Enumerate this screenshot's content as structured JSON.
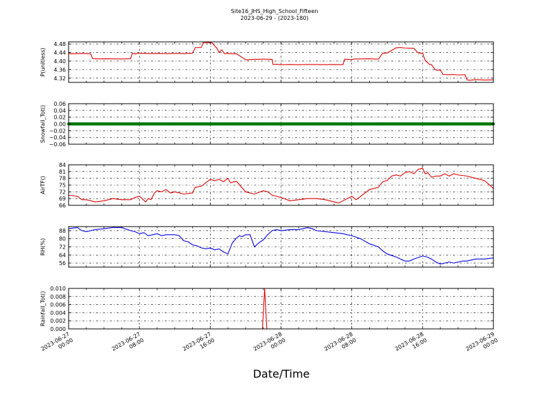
{
  "title_line1": "Site16_JHS_High_School_Fifteen",
  "title_line2": "2023-06-29 - (2023-180)",
  "xlabel": "Date/Time",
  "x_ticks": [
    {
      "t": 0,
      "line1": "2023-06-27",
      "line2": "00:00"
    },
    {
      "t": 8,
      "line1": "2023-06-27",
      "line2": "08:00"
    },
    {
      "t": 16,
      "line1": "2023-06-27",
      "line2": "16:00"
    },
    {
      "t": 24,
      "line1": "2023-06-28",
      "line2": "00:00"
    },
    {
      "t": 32,
      "line1": "2023-06-28",
      "line2": "08:00"
    },
    {
      "t": 40,
      "line1": "2023-06-28",
      "line2": "16:00"
    },
    {
      "t": 48,
      "line1": "2023-06-29",
      "line2": "00:00"
    }
  ],
  "chart_data": [
    {
      "type": "line",
      "ylabel": "P(unitless)",
      "ylim": [
        4.3,
        4.49
      ],
      "yticks": [
        4.32,
        4.36,
        4.4,
        4.44,
        4.48
      ],
      "ytick_labels": [
        "4.32",
        "4.36",
        "4.40",
        "4.44",
        "4.48"
      ],
      "color": "#dd0000",
      "x_hours": [
        0,
        0.3,
        1.5,
        2.5,
        2.7,
        3.3,
        4,
        6,
        7,
        7.2,
        7.5,
        8,
        9,
        10,
        11,
        12,
        13,
        14,
        14.3,
        15,
        15.2,
        16,
        16.2,
        16.8,
        17,
        17.3,
        17.6,
        18,
        19,
        20,
        21,
        22,
        23,
        23.1,
        23.6,
        24,
        25,
        26,
        27,
        28,
        29,
        30,
        31,
        31.2,
        32,
        32.3,
        33,
        34,
        35,
        35.5,
        36,
        37,
        37.5,
        38,
        39,
        39.5,
        40,
        40.3,
        40.8,
        41,
        41.4,
        41.7,
        42,
        42.3,
        43,
        43.5,
        44,
        44.8,
        45,
        45.3,
        46,
        47,
        48
      ],
      "values": [
        4.437,
        4.434,
        4.436,
        4.434,
        4.412,
        4.41,
        4.411,
        4.41,
        4.411,
        4.437,
        4.434,
        4.437,
        4.435,
        4.436,
        4.435,
        4.436,
        4.435,
        4.437,
        4.463,
        4.464,
        4.486,
        4.487,
        4.485,
        4.458,
        4.44,
        4.453,
        4.435,
        4.436,
        4.434,
        4.406,
        4.408,
        4.409,
        4.408,
        4.384,
        4.385,
        4.383,
        4.384,
        4.383,
        4.384,
        4.384,
        4.383,
        4.384,
        4.383,
        4.409,
        4.407,
        4.41,
        4.41,
        4.411,
        4.409,
        4.437,
        4.438,
        4.462,
        4.463,
        4.461,
        4.46,
        4.438,
        4.437,
        4.402,
        4.384,
        4.384,
        4.36,
        4.357,
        4.358,
        4.337,
        4.336,
        4.337,
        4.335,
        4.336,
        4.312,
        4.31,
        4.313,
        4.311,
        4.312
      ]
    },
    {
      "type": "scatter",
      "ylabel": "Snowfall_Tot()",
      "ylim": [
        -0.06,
        0.06
      ],
      "yticks": [
        -0.06,
        -0.04,
        -0.02,
        0.0,
        0.02,
        0.04,
        0.06
      ],
      "ytick_labels": [
        "−0.06",
        "−0.04",
        "−0.02",
        "0.00",
        "0.02",
        "0.04",
        "0.06"
      ],
      "color": "#007700",
      "x_range_hours": [
        0,
        48
      ],
      "value": 0.0,
      "interval_minutes": 5
    },
    {
      "type": "line",
      "ylabel": "AirTF()",
      "ylim": [
        66,
        84
      ],
      "yticks": [
        66,
        69,
        72,
        75,
        78,
        81,
        84
      ],
      "ytick_labels": [
        "66",
        "69",
        "72",
        "75",
        "78",
        "81",
        "84"
      ],
      "color": "#dd0000",
      "x_hours": [
        0,
        1,
        1.5,
        2,
        3,
        4,
        5,
        6,
        7,
        7.5,
        8,
        8.3,
        8.7,
        9,
        9.3,
        9.7,
        10,
        10.5,
        11,
        11.5,
        12,
        12.5,
        13,
        14,
        14.3,
        15,
        15.5,
        16,
        16.5,
        17,
        17.5,
        18,
        18.3,
        18.7,
        19,
        20,
        21,
        22,
        22.5,
        23,
        23.5,
        24,
        25,
        26,
        27,
        28,
        29,
        30,
        30.5,
        31,
        31.5,
        32,
        32.5,
        33,
        34,
        35,
        35.5,
        36,
        36.5,
        37,
        37.5,
        38,
        38.5,
        39,
        39.5,
        40,
        40.3,
        40.6,
        41,
        41.5,
        42,
        42.5,
        43,
        43.5,
        44,
        45,
        46,
        47,
        48
      ],
      "values": [
        70.5,
        70,
        68.5,
        68.5,
        67.5,
        68,
        69,
        68.5,
        68.5,
        69.5,
        70,
        69,
        67.5,
        69,
        68.5,
        71.5,
        72.5,
        72,
        73,
        71.5,
        72,
        71.5,
        71,
        71.5,
        74,
        74.5,
        76,
        77.5,
        77,
        77.5,
        76.5,
        78,
        76,
        76.5,
        76.5,
        72,
        71,
        72.5,
        72,
        70.5,
        70,
        69.5,
        68,
        68.5,
        69,
        69,
        68.5,
        67.5,
        67,
        68,
        69,
        70,
        68.5,
        70,
        73,
        74,
        76.5,
        77,
        79,
        79.5,
        79,
        80.5,
        81,
        80,
        82,
        82.5,
        80,
        80.5,
        78.5,
        79,
        79,
        80,
        79,
        80,
        79.5,
        79,
        78,
        77,
        73.5
      ]
    },
    {
      "type": "line",
      "ylabel": "RH(%)",
      "ylim": [
        52,
        92
      ],
      "yticks": [
        56,
        64,
        72,
        80,
        88
      ],
      "ytick_labels": [
        "56",
        "64",
        "72",
        "80",
        "88"
      ],
      "color": "#0000dd",
      "x_hours": [
        0,
        1,
        1.5,
        2,
        2.5,
        3,
        4,
        5,
        6,
        7,
        7.5,
        8,
        8.5,
        9,
        9.5,
        10,
        10.5,
        11,
        12,
        12.5,
        13,
        13.5,
        14,
        14.5,
        15,
        15.5,
        16,
        16.5,
        17,
        17.5,
        18,
        18.5,
        19,
        19.3,
        19.6,
        20,
        20.5,
        21,
        21.5,
        22,
        22.5,
        23,
        23.5,
        24,
        25,
        26,
        27,
        27.5,
        28,
        29,
        30,
        31,
        32,
        33,
        34,
        35,
        35.5,
        36,
        37,
        37.5,
        38,
        38.5,
        39,
        40,
        40.5,
        41,
        41.5,
        42,
        42.5,
        43,
        43.5,
        44,
        44.5,
        45,
        46,
        47,
        48
      ],
      "values": [
        90,
        91,
        88,
        87,
        88,
        89,
        90,
        91,
        91,
        88,
        87,
        85,
        86,
        83,
        84,
        85,
        83,
        84,
        84,
        83,
        78,
        77,
        74,
        73,
        71,
        70,
        71,
        69,
        70,
        67,
        65,
        76,
        81,
        83,
        82,
        84,
        84,
        72,
        76,
        79,
        84,
        88,
        89,
        88,
        89,
        89,
        91,
        90,
        88,
        87,
        86,
        85,
        83,
        80,
        75,
        72,
        68,
        65,
        62,
        60,
        58,
        58,
        60,
        63,
        62,
        60,
        57,
        55,
        56,
        57,
        56,
        57,
        58,
        58,
        60,
        60,
        61
      ]
    },
    {
      "type": "line",
      "ylabel": "Rainfall_Tot()",
      "ylim": [
        0.0,
        0.01
      ],
      "yticks": [
        0.0,
        0.002,
        0.004,
        0.006,
        0.008,
        0.01
      ],
      "ytick_labels": [
        "0.000",
        "0.002",
        "0.004",
        "0.006",
        "0.008",
        "0.010"
      ],
      "color": "#dd0000",
      "x_hours": [
        0,
        21.9,
        22.15,
        22.4,
        48
      ],
      "values": [
        0,
        0,
        0.01,
        0,
        0
      ]
    }
  ]
}
